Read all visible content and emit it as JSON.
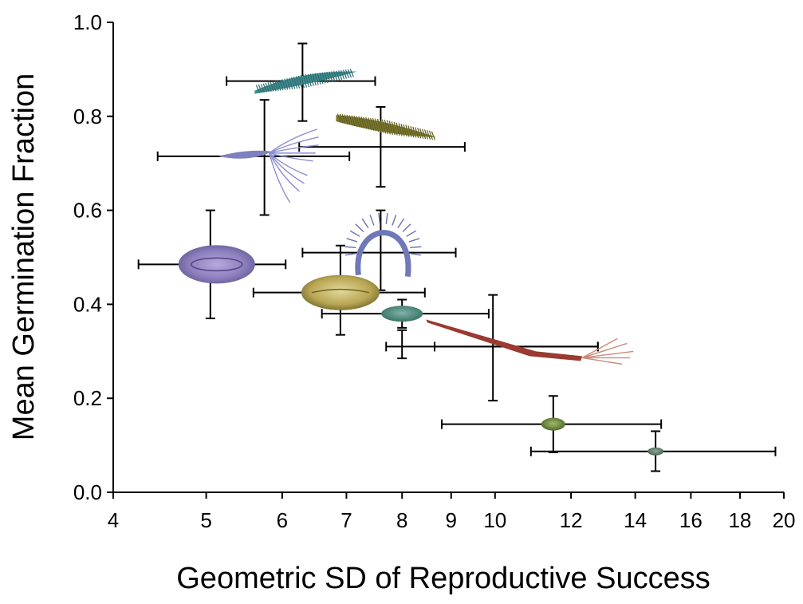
{
  "chart_data": {
    "type": "scatter",
    "title": "",
    "xlabel": "Geometric SD of Reproductive Success",
    "ylabel": "Mean Germination Fraction",
    "x_scale": "log",
    "xlim": [
      4,
      20
    ],
    "ylim": [
      0,
      1
    ],
    "x_ticks": [
      4,
      5,
      6,
      7,
      8,
      9,
      10,
      12,
      14,
      16,
      18,
      20
    ],
    "x_tick_labels": [
      "4",
      "5",
      "6",
      "7",
      "8",
      "9",
      "10",
      "12",
      "14",
      "16",
      "18",
      "20"
    ],
    "y_ticks": [
      0,
      0.2,
      0.4,
      0.6,
      0.8,
      1.0
    ],
    "y_tick_labels": [
      "0.0",
      "0.2",
      "0.4",
      "0.6",
      "0.8",
      "1.0"
    ],
    "grid": false,
    "points": [
      {
        "x": 6.3,
        "y": 0.875,
        "x_lo": 5.25,
        "x_hi": 7.5,
        "y_lo": 0.79,
        "y_hi": 0.955,
        "marker": "teal-bristled-seed",
        "color": "#3f8c8f"
      },
      {
        "x": 7.6,
        "y": 0.735,
        "x_lo": 6.25,
        "x_hi": 9.3,
        "y_lo": 0.65,
        "y_hi": 0.82,
        "marker": "olive-bristled-seed",
        "color": "#7d7a2e"
      },
      {
        "x": 5.75,
        "y": 0.715,
        "x_lo": 4.45,
        "x_hi": 7.05,
        "y_lo": 0.59,
        "y_hi": 0.835,
        "marker": "plumed-seed",
        "color": "#7f80c0"
      },
      {
        "x": 5.05,
        "y": 0.485,
        "x_lo": 4.25,
        "x_hi": 6.05,
        "y_lo": 0.37,
        "y_hi": 0.6,
        "marker": "purple-oval-seed",
        "color": "#8d7fbd"
      },
      {
        "x": 7.6,
        "y": 0.51,
        "x_lo": 6.3,
        "x_hi": 9.1,
        "y_lo": 0.43,
        "y_hi": 0.6,
        "marker": "coiled-seed",
        "color": "#7078b8"
      },
      {
        "x": 6.9,
        "y": 0.425,
        "x_lo": 5.6,
        "x_hi": 8.45,
        "y_lo": 0.335,
        "y_hi": 0.525,
        "marker": "tan-oval-seed",
        "color": "#b7a552"
      },
      {
        "x": 8.0,
        "y": 0.31,
        "x_lo": 7.7,
        "x_hi": 12.8,
        "y_lo": 0.285,
        "y_hi": 0.345,
        "marker": "awned-seed",
        "color": "#b35a45"
      },
      {
        "x": 8.0,
        "y": 0.38,
        "x_lo": 6.6,
        "x_hi": 9.85,
        "y_lo": 0.35,
        "y_hi": 0.41,
        "marker": "teal-small-seed",
        "color": "#4e8a7c"
      },
      {
        "x": 9.95,
        "y": 0.31,
        "x_lo": 8.65,
        "x_hi": 12.8,
        "y_lo": 0.195,
        "y_hi": 0.42,
        "marker": "",
        "color": "#000000"
      },
      {
        "x": 11.5,
        "y": 0.145,
        "x_lo": 8.8,
        "x_hi": 14.9,
        "y_lo": 0.085,
        "y_hi": 0.205,
        "marker": "green-small-seed",
        "color": "#6e8a3c"
      },
      {
        "x": 14.7,
        "y": 0.087,
        "x_lo": 10.9,
        "x_hi": 19.6,
        "y_lo": 0.045,
        "y_hi": 0.13,
        "marker": "grey-green-small-seed",
        "color": "#5c7a68"
      }
    ]
  }
}
